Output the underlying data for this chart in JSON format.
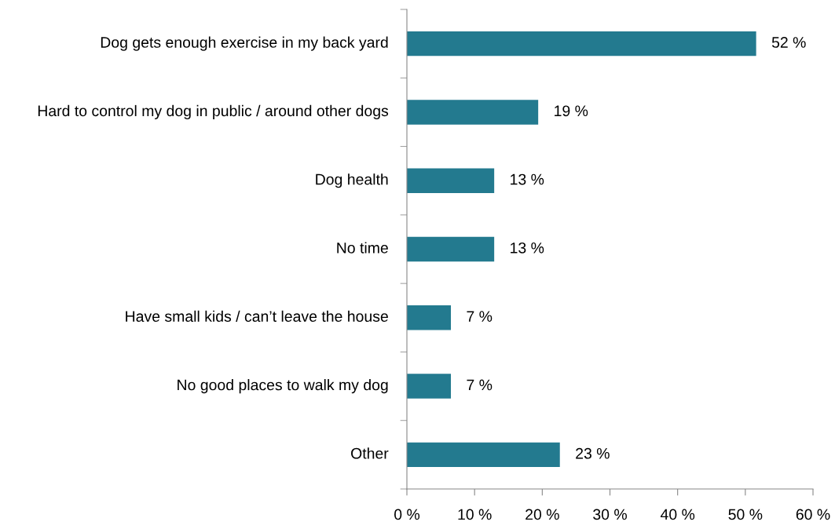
{
  "chart_data": {
    "type": "bar",
    "orientation": "horizontal",
    "categories": [
      "Dog gets enough exercise in my back yard",
      "Hard to control my dog in public / around other dogs",
      "Dog health",
      "No time",
      "Have small kids / can’t leave the house",
      "No good places to walk my dog",
      "Other"
    ],
    "values": [
      51.6,
      19.4,
      12.9,
      12.9,
      6.5,
      6.5,
      22.6
    ],
    "value_labels": [
      "52 %",
      "19 %",
      "13 %",
      "13 %",
      "7 %",
      "7 %",
      "23 %"
    ],
    "color": "#237a8f",
    "xlim": [
      0,
      60
    ],
    "xticks": [
      {
        "value": 0,
        "label": "0 %"
      },
      {
        "value": 10,
        "label": "10 %"
      },
      {
        "value": 20,
        "label": "20 %"
      },
      {
        "value": 30,
        "label": "30 %"
      },
      {
        "value": 40,
        "label": "40 %"
      },
      {
        "value": 50,
        "label": "50 %"
      },
      {
        "value": 60,
        "label": "60 %"
      }
    ],
    "grid": false,
    "legend": false
  }
}
